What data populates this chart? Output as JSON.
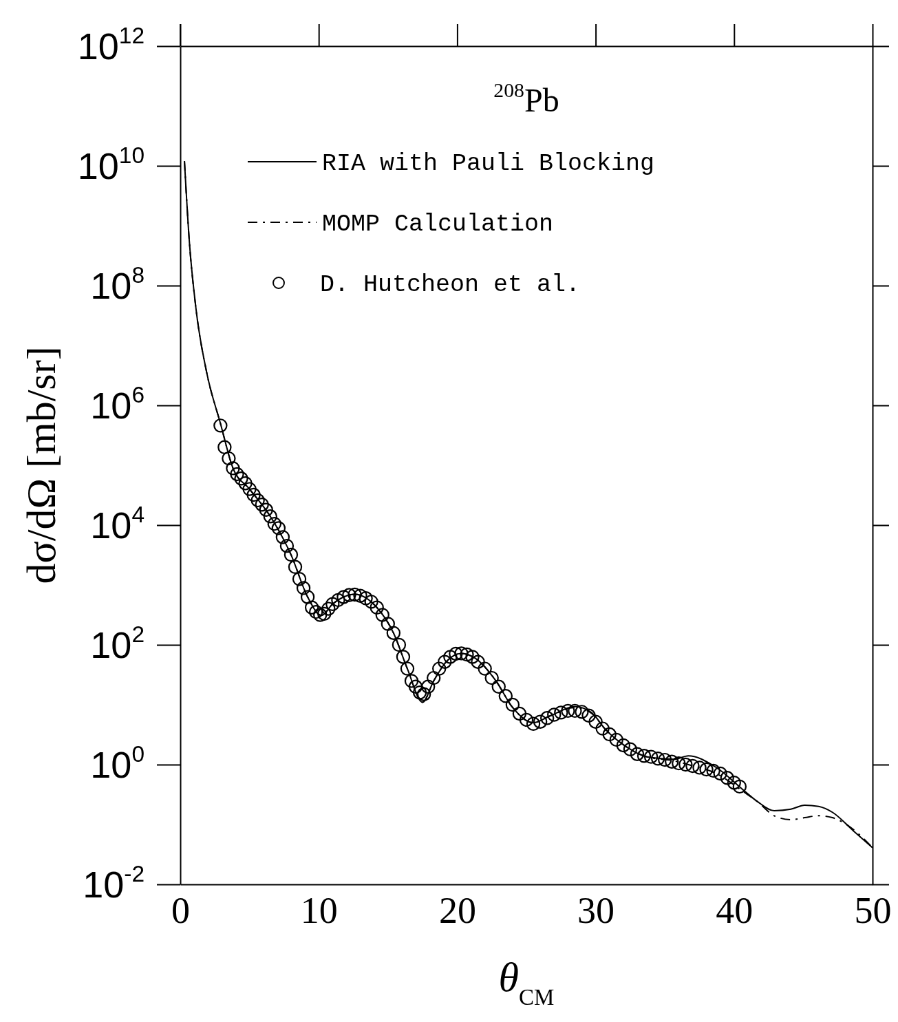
{
  "chart_data": {
    "type": "line",
    "title": "$^{208}$Pb",
    "xlabel": "θ$_{CM}$",
    "ylabel": "dσ/dΩ [mb/sr]",
    "xlim": [
      0,
      50
    ],
    "xticks": [
      0,
      10,
      20,
      30,
      40,
      50
    ],
    "ylim": [
      0.01,
      1000000000000.0
    ],
    "log": "y",
    "yticks": [
      {
        "value": 0.01,
        "label": "10$^{-2}$"
      },
      {
        "value": 1,
        "label": "10$^{0}$"
      },
      {
        "value": 100,
        "label": "10$^{2}$"
      },
      {
        "value": 10000,
        "label": "10$^{4}$"
      },
      {
        "value": 1000000,
        "label": "10$^{6}$"
      },
      {
        "value": 100000000,
        "label": "10$^{8}$"
      },
      {
        "value": 10000000000,
        "label": "10$^{10}$"
      },
      {
        "value": 1000000000000,
        "label": "10$^{12}$"
      }
    ],
    "legend": "top left",
    "series": [
      {
        "name": "RIA with Pauli Blocking",
        "type": "line",
        "line_style": "solid",
        "color": "#000000",
        "x": [
          0.3,
          0.65,
          1.14,
          1.9,
          2.9,
          3.8,
          5.0,
          6.5,
          8.0,
          9.2,
          10.2,
          11.0,
          12.6,
          14.2,
          15.4,
          16.4,
          17.5,
          18.3,
          19.3,
          20.3,
          21.3,
          22.8,
          24.0,
          25.5,
          26.7,
          28.5,
          29.7,
          30.7,
          32.2,
          33.7,
          35.7,
          36.7,
          38.7,
          40.7,
          41.7,
          42.9,
          44.1,
          45.1,
          46.1,
          47.1,
          48.6,
          50
        ],
        "values": [
          12000000000.0,
          560000000.0,
          40000000.0,
          3600000.0,
          500000,
          90000,
          40000,
          14000,
          3200,
          630,
          310,
          480,
          700,
          420,
          158,
          40,
          11,
          25,
          55,
          72,
          60,
          25,
          9,
          5,
          6.5,
          9.3,
          7.4,
          3.9,
          2.0,
          1.35,
          1.23,
          1.4,
          0.9,
          0.37,
          0.24,
          0.17,
          0.18,
          0.21,
          0.2,
          0.16,
          0.079,
          0.041
        ]
      },
      {
        "name": "MOMP Calculation",
        "type": "line",
        "line_style": "dashed",
        "color": "#000000",
        "x": [
          0.3,
          0.65,
          1.14,
          1.9,
          2.9,
          3.8,
          5.0,
          6.5,
          8.0,
          9.2,
          10.2,
          11.0,
          12.6,
          14.2,
          15.4,
          16.4,
          17.5,
          18.3,
          19.3,
          20.3,
          21.3,
          22.8,
          24.0,
          25.5,
          26.7,
          28.5,
          29.7,
          30.7,
          32.2,
          33.7,
          35.7,
          36.7,
          38.7,
          40.7,
          41.7,
          42.9,
          44.1,
          45.1,
          46.1,
          47.1,
          48.6,
          50
        ],
        "values": [
          12000000000.0,
          560000000.0,
          40000000.0,
          3600000.0,
          500000,
          90000,
          40000,
          14000,
          3200,
          630,
          310,
          480,
          700,
          420,
          158,
          40,
          11,
          25,
          55,
          72,
          60,
          25,
          9,
          5,
          6.5,
          9.0,
          7.2,
          3.9,
          2.0,
          1.35,
          1.15,
          1.0,
          0.71,
          0.35,
          0.24,
          0.14,
          0.12,
          0.13,
          0.14,
          0.13,
          0.083,
          0.041
        ]
      },
      {
        "name": "D. Hutcheon et al.",
        "type": "scatter",
        "marker": "circle",
        "color": "#000000",
        "x": [
          2.9,
          3.2,
          3.5,
          3.8,
          4.1,
          4.4,
          4.7,
          5.0,
          5.3,
          5.6,
          5.9,
          6.2,
          6.5,
          6.8,
          7.1,
          7.4,
          7.7,
          8.0,
          8.3,
          8.6,
          8.9,
          9.2,
          9.5,
          9.8,
          10.1,
          10.4,
          10.7,
          11.0,
          11.4,
          11.8,
          12.2,
          12.6,
          13.0,
          13.4,
          13.8,
          14.2,
          14.6,
          15.0,
          15.4,
          15.8,
          16.1,
          16.4,
          16.7,
          17.0,
          17.3,
          17.6,
          17.9,
          18.3,
          18.7,
          19.1,
          19.5,
          19.9,
          20.3,
          20.7,
          21.1,
          21.5,
          22.0,
          22.5,
          23.0,
          23.5,
          24.0,
          24.5,
          25.0,
          25.5,
          26.0,
          26.5,
          27.0,
          27.5,
          28.0,
          28.5,
          29.0,
          29.5,
          30.0,
          30.5,
          31.0,
          31.5,
          32.0,
          32.5,
          33.0,
          33.5,
          34.0,
          34.5,
          35.0,
          35.5,
          36.0,
          36.5,
          37.0,
          37.5,
          38.0,
          38.5,
          39.0,
          39.5,
          40.0,
          40.4
        ],
        "values": [
          460000,
          200000,
          130000,
          89000,
          71000,
          60000,
          50000,
          40000,
          32000,
          26000,
          22000,
          18000,
          14000,
          10500,
          8900,
          6300,
          4500,
          3200,
          2000,
          1260,
          890,
          630,
          420,
          355,
          316,
          330,
          400,
          480,
          560,
          630,
          680,
          690,
          660,
          600,
          525,
          420,
          316,
          224,
          158,
          100,
          63,
          40,
          25,
          20,
          16,
          15,
          20,
          28,
          40,
          52,
          63,
          71,
          72,
          69,
          63,
          52,
          40,
          28,
          20,
          14,
          10,
          7.1,
          5.6,
          4.8,
          5.2,
          6.0,
          6.8,
          7.4,
          7.9,
          7.9,
          7.6,
          6.6,
          5.2,
          4.0,
          3.2,
          2.6,
          2.1,
          1.8,
          1.5,
          1.4,
          1.35,
          1.26,
          1.2,
          1.12,
          1.05,
          1.0,
          0.95,
          0.89,
          0.83,
          0.79,
          0.71,
          0.6,
          0.5,
          0.43
        ]
      }
    ]
  }
}
